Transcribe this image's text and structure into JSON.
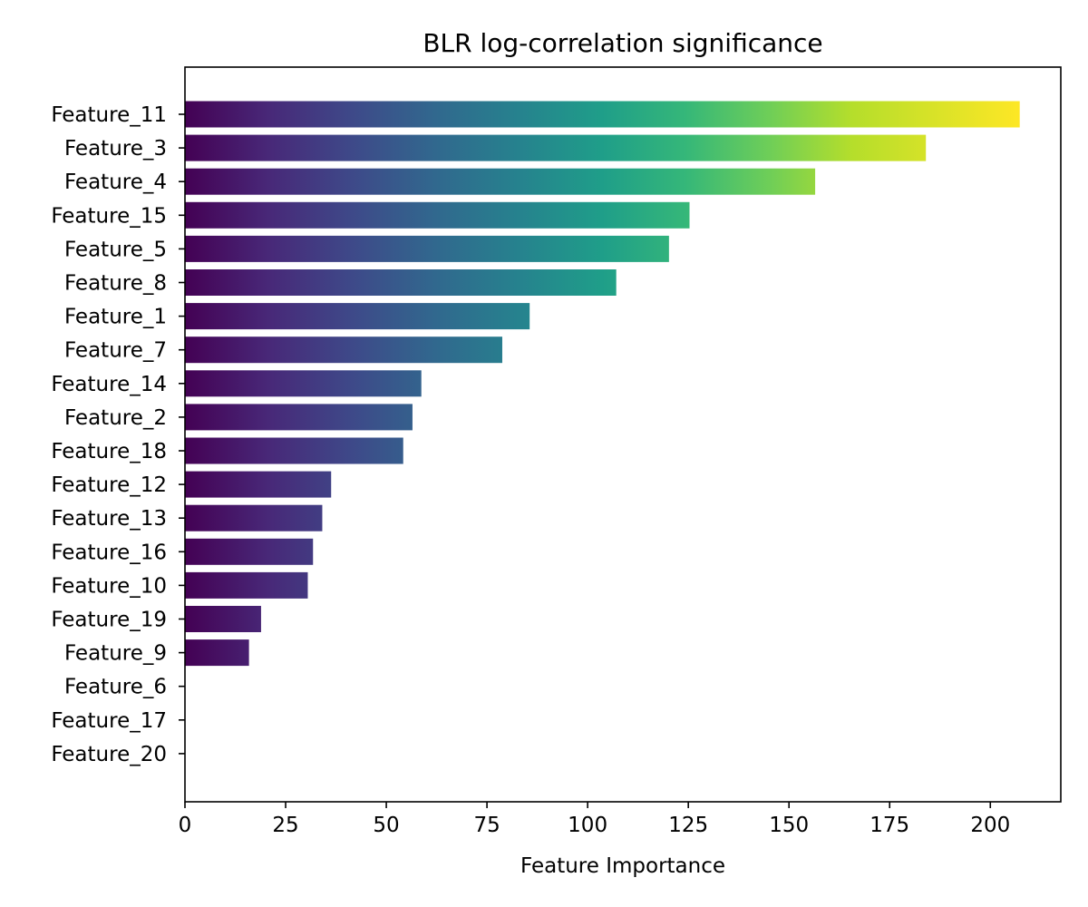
{
  "chart_data": {
    "type": "bar",
    "orientation": "horizontal",
    "title": "BLR log-correlation significance",
    "xlabel": "Feature Importance",
    "ylabel": "",
    "xlim": [
      0,
      217.5
    ],
    "xticks": [
      0,
      25,
      50,
      75,
      100,
      125,
      150,
      175,
      200
    ],
    "grid": false,
    "colormap": "viridis",
    "categories": [
      "Feature_11",
      "Feature_3",
      "Feature_4",
      "Feature_15",
      "Feature_5",
      "Feature_8",
      "Feature_1",
      "Feature_7",
      "Feature_14",
      "Feature_2",
      "Feature_18",
      "Feature_12",
      "Feature_13",
      "Feature_16",
      "Feature_10",
      "Feature_19",
      "Feature_9",
      "Feature_6",
      "Feature_17",
      "Feature_20"
    ],
    "values": [
      207.3,
      184.0,
      156.5,
      125.3,
      120.2,
      107.1,
      85.6,
      78.8,
      58.7,
      56.5,
      54.2,
      36.3,
      34.1,
      31.8,
      30.5,
      18.9,
      15.9,
      0,
      0,
      0
    ]
  }
}
